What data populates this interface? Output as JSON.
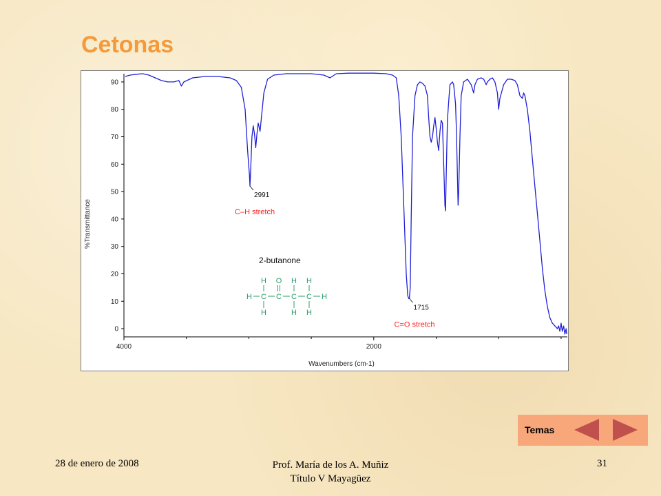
{
  "slide": {
    "title": "Cetonas",
    "footer_date": "28 de enero de 2008",
    "footer_author_line1": "Prof. María de los A. Muñiz",
    "footer_author_line2": "Título V Mayagüez",
    "page_number": "31"
  },
  "nav": {
    "label": "Temas",
    "prev_icon": "triangle-left-icon",
    "next_icon": "triangle-right-icon",
    "box_color": "#f7a77a",
    "arrow_color": "#c0504d"
  },
  "colors": {
    "title": "#f59a3a",
    "spectrum": "#1f1fd6",
    "annotation_red": "#ff2020",
    "molecule_green": "#2a9d6a"
  },
  "chart_data": {
    "type": "line",
    "xlabel": "Wavenumbers (cm-1)",
    "ylabel": "%Transmittance",
    "xlim": [
      4000,
      450
    ],
    "ylim": [
      -3,
      93
    ],
    "x_tick_labels": [
      "4000",
      "2000"
    ],
    "y_tick_labels": [
      "90",
      "80",
      "70",
      "60",
      "50",
      "40",
      "30",
      "20",
      "10",
      "0"
    ],
    "compound": "2-butanone",
    "structure": {
      "row_top": [
        "H",
        "O",
        "H",
        "H"
      ],
      "row_mid": [
        "H",
        "C",
        "C",
        "C",
        "C",
        "H"
      ],
      "row_bot": [
        "H",
        "H",
        "H"
      ]
    },
    "annotations": [
      {
        "x": 2991,
        "y": 52,
        "label": "2991",
        "description": "C–H stretch"
      },
      {
        "x": 1715,
        "y": 11,
        "label": "1715",
        "description": "C=O stretch"
      }
    ],
    "series": [
      {
        "points": [
          [
            3990,
            92
          ],
          [
            3950,
            92.5
          ],
          [
            3900,
            92.8
          ],
          [
            3850,
            93
          ],
          [
            3800,
            92.5
          ],
          [
            3750,
            91.5
          ],
          [
            3700,
            90.5
          ],
          [
            3650,
            90
          ],
          [
            3600,
            90
          ],
          [
            3560,
            90.5
          ],
          [
            3540,
            88.5
          ],
          [
            3520,
            90
          ],
          [
            3450,
            91.5
          ],
          [
            3350,
            92
          ],
          [
            3250,
            92
          ],
          [
            3150,
            91.5
          ],
          [
            3100,
            90.5
          ],
          [
            3060,
            88
          ],
          [
            3030,
            80
          ],
          [
            3010,
            65
          ],
          [
            2995,
            56
          ],
          [
            2991,
            52
          ],
          [
            2985,
            58
          ],
          [
            2975,
            70
          ],
          [
            2965,
            74
          ],
          [
            2955,
            71
          ],
          [
            2945,
            66
          ],
          [
            2935,
            71
          ],
          [
            2925,
            75
          ],
          [
            2910,
            72
          ],
          [
            2880,
            86
          ],
          [
            2850,
            91
          ],
          [
            2800,
            92.5
          ],
          [
            2700,
            93
          ],
          [
            2600,
            93
          ],
          [
            2500,
            93
          ],
          [
            2400,
            92.5
          ],
          [
            2350,
            91.5
          ],
          [
            2300,
            93
          ],
          [
            2200,
            93.2
          ],
          [
            2100,
            93.2
          ],
          [
            2000,
            93.2
          ],
          [
            1900,
            93
          ],
          [
            1850,
            92.5
          ],
          [
            1820,
            91.5
          ],
          [
            1800,
            85
          ],
          [
            1780,
            70
          ],
          [
            1760,
            45
          ],
          [
            1740,
            20
          ],
          [
            1728,
            12
          ],
          [
            1720,
            11
          ],
          [
            1715,
            11
          ],
          [
            1708,
            15
          ],
          [
            1700,
            40
          ],
          [
            1690,
            70
          ],
          [
            1670,
            85
          ],
          [
            1650,
            89
          ],
          [
            1630,
            90
          ],
          [
            1610,
            89.5
          ],
          [
            1590,
            88.5
          ],
          [
            1570,
            85
          ],
          [
            1560,
            77
          ],
          [
            1550,
            70
          ],
          [
            1540,
            68
          ],
          [
            1530,
            70
          ],
          [
            1520,
            74
          ],
          [
            1510,
            77
          ],
          [
            1500,
            73
          ],
          [
            1490,
            68
          ],
          [
            1480,
            65
          ],
          [
            1470,
            72
          ],
          [
            1460,
            76
          ],
          [
            1450,
            75
          ],
          [
            1440,
            60
          ],
          [
            1430,
            45
          ],
          [
            1425,
            43
          ],
          [
            1420,
            55
          ],
          [
            1410,
            76
          ],
          [
            1400,
            83
          ],
          [
            1390,
            89
          ],
          [
            1370,
            90
          ],
          [
            1360,
            89
          ],
          [
            1345,
            82
          ],
          [
            1338,
            72
          ],
          [
            1330,
            55
          ],
          [
            1325,
            45
          ],
          [
            1320,
            50
          ],
          [
            1310,
            70
          ],
          [
            1300,
            85
          ],
          [
            1280,
            90
          ],
          [
            1250,
            91
          ],
          [
            1220,
            89
          ],
          [
            1200,
            86
          ],
          [
            1190,
            89
          ],
          [
            1170,
            91
          ],
          [
            1140,
            91.5
          ],
          [
            1120,
            91
          ],
          [
            1100,
            89
          ],
          [
            1090,
            90
          ],
          [
            1070,
            91
          ],
          [
            1050,
            91.5
          ],
          [
            1030,
            90
          ],
          [
            1010,
            86
          ],
          [
            1000,
            80
          ],
          [
            990,
            84
          ],
          [
            960,
            89
          ],
          [
            930,
            91
          ],
          [
            900,
            91
          ],
          [
            870,
            90.5
          ],
          [
            850,
            89
          ],
          [
            830,
            85
          ],
          [
            810,
            84
          ],
          [
            800,
            86
          ],
          [
            790,
            85
          ],
          [
            770,
            80
          ],
          [
            750,
            72
          ],
          [
            730,
            62
          ],
          [
            710,
            52
          ],
          [
            690,
            42
          ],
          [
            670,
            32
          ],
          [
            650,
            22
          ],
          [
            630,
            14
          ],
          [
            610,
            8
          ],
          [
            590,
            4
          ],
          [
            570,
            2
          ],
          [
            550,
            1
          ],
          [
            530,
            0
          ],
          [
            520,
            1
          ],
          [
            510,
            -1
          ],
          [
            500,
            2
          ],
          [
            490,
            -1
          ],
          [
            480,
            1
          ],
          [
            470,
            -2
          ],
          [
            460,
            0
          ],
          [
            455,
            -2
          ]
        ]
      }
    ]
  }
}
